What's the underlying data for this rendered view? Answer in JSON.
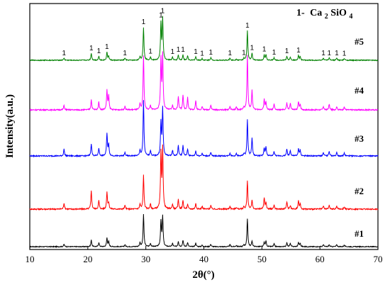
{
  "chart_data": {
    "type": "line",
    "xlabel": "2θ(°)",
    "ylabel": "Intensity(a.u.)",
    "xlim": [
      10,
      70
    ],
    "xticks": [
      10,
      20,
      30,
      40,
      50,
      60,
      70
    ],
    "legend": {
      "marker": "1-",
      "phase_prefix": "Ca",
      "phase_sub1": "2",
      "phase_mid": "SiO",
      "phase_sub2": "4",
      "placement": "top-right"
    },
    "peak_marker_label": "1",
    "peak_markers": [
      15.9,
      20.6,
      21.9,
      23.3,
      26.4,
      29.6,
      30.8,
      32.6,
      32.9,
      34.6,
      35.6,
      36.4,
      38.6,
      39.7,
      41.2,
      44.5,
      46.9,
      47.5,
      48.3,
      50.4,
      52.1,
      54.3,
      56.3,
      60.6,
      61.6,
      62.9,
      64.2
    ],
    "peak_positions": [
      15.9,
      20.6,
      21.9,
      23.3,
      23.6,
      26.4,
      29.0,
      29.6,
      30.8,
      32.6,
      32.9,
      34.6,
      35.6,
      36.4,
      37.2,
      38.6,
      39.7,
      41.2,
      44.5,
      45.6,
      46.9,
      47.5,
      48.3,
      50.4,
      50.7,
      52.1,
      54.3,
      54.9,
      56.3,
      56.6,
      60.6,
      61.6,
      62.9,
      64.2
    ],
    "series": [
      {
        "name": "#1",
        "color": "#000000",
        "relative_intensities": [
          0.06,
          0.16,
          0.1,
          0.21,
          0.12,
          0.05,
          0.1,
          0.78,
          0.08,
          0.62,
          0.72,
          0.08,
          0.13,
          0.16,
          0.1,
          0.09,
          0.04,
          0.06,
          0.05,
          0.03,
          0.04,
          0.68,
          0.14,
          0.1,
          0.14,
          0.07,
          0.1,
          0.08,
          0.1,
          0.08,
          0.05,
          0.05,
          0.05,
          0.04
        ]
      },
      {
        "name": "#2",
        "color": "#ff0000",
        "relative_intensities": [
          0.1,
          0.3,
          0.14,
          0.28,
          0.1,
          0.06,
          0.08,
          0.55,
          0.08,
          0.9,
          0.98,
          0.08,
          0.16,
          0.14,
          0.08,
          0.09,
          0.05,
          0.06,
          0.05,
          0.03,
          0.04,
          0.46,
          0.14,
          0.18,
          0.1,
          0.07,
          0.12,
          0.06,
          0.14,
          0.08,
          0.05,
          0.06,
          0.05,
          0.04
        ]
      },
      {
        "name": "#3",
        "color": "#0000ff",
        "relative_intensities": [
          0.12,
          0.22,
          0.14,
          0.4,
          0.2,
          0.06,
          0.1,
          0.98,
          0.1,
          0.58,
          0.84,
          0.1,
          0.18,
          0.18,
          0.12,
          0.09,
          0.05,
          0.06,
          0.05,
          0.04,
          0.04,
          0.64,
          0.32,
          0.14,
          0.16,
          0.08,
          0.12,
          0.1,
          0.12,
          0.1,
          0.06,
          0.08,
          0.06,
          0.05
        ]
      },
      {
        "name": "#4",
        "color": "#ff00ff",
        "relative_intensities": [
          0.08,
          0.18,
          0.14,
          0.34,
          0.24,
          0.06,
          0.1,
          0.96,
          0.08,
          0.88,
          0.96,
          0.08,
          0.24,
          0.26,
          0.22,
          0.16,
          0.06,
          0.09,
          0.06,
          0.05,
          0.05,
          0.96,
          0.34,
          0.18,
          0.14,
          0.1,
          0.12,
          0.12,
          0.14,
          0.1,
          0.06,
          0.1,
          0.06,
          0.05
        ]
      },
      {
        "name": "#5",
        "color": "#008000",
        "relative_intensities": [
          0.05,
          0.16,
          0.09,
          0.18,
          0.09,
          0.05,
          0.08,
          0.74,
          0.08,
          0.82,
          0.92,
          0.07,
          0.12,
          0.12,
          0.1,
          0.08,
          0.04,
          0.06,
          0.05,
          0.03,
          0.04,
          0.66,
          0.16,
          0.12,
          0.12,
          0.06,
          0.09,
          0.07,
          0.1,
          0.08,
          0.05,
          0.05,
          0.05,
          0.04
        ]
      }
    ]
  }
}
